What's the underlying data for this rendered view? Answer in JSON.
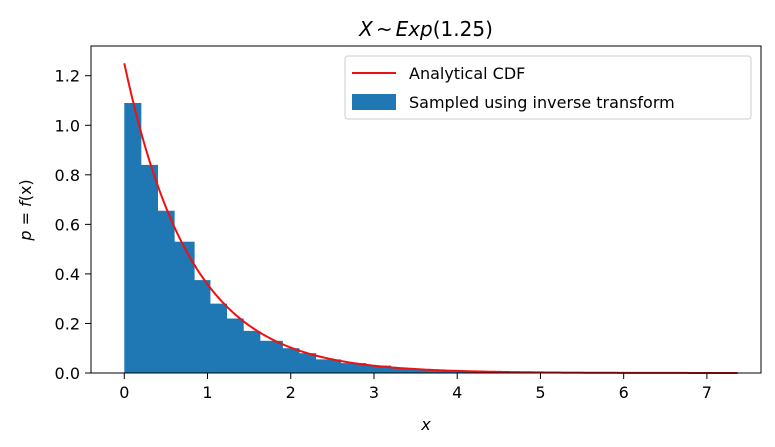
{
  "chart_data": {
    "type": "histogram+line",
    "title": "X ~ Exp(1.25)",
    "title_parts": {
      "var": "X",
      "op": "~",
      "dist": "Exp",
      "param": "(1.25)"
    },
    "xlabel": "x",
    "ylabel_parts": {
      "p": "p",
      "eq": " = ",
      "f": "f",
      "arg": "(x)"
    },
    "xlim": [
      -0.4,
      7.65
    ],
    "ylim": [
      0,
      1.32
    ],
    "xticks": [
      0,
      1,
      2,
      3,
      4,
      5,
      6,
      7
    ],
    "xtick_labels": [
      "0",
      "1",
      "2",
      "3",
      "4",
      "5",
      "6",
      "7"
    ],
    "yticks": [
      0.0,
      0.2,
      0.4,
      0.6,
      0.8,
      1.0,
      1.2
    ],
    "ytick_labels": [
      "0.0",
      "0.2",
      "0.4",
      "0.6",
      "0.8",
      "1.0",
      "1.2"
    ],
    "legend_position": "upper-right",
    "series": [
      {
        "name": "Analytical CDF",
        "kind": "line",
        "color": "#ee1111",
        "function": "1.25*exp(-1.25*x)",
        "rate": 1.25,
        "x_range": [
          0,
          7.37
        ]
      },
      {
        "name": "Sampled using inverse transform",
        "kind": "histogram",
        "color": "#1f77b4",
        "bin_edges": [
          0.0,
          0.2,
          0.4,
          0.6,
          0.84,
          1.03,
          1.23,
          1.43,
          1.63,
          1.9,
          2.1,
          2.3,
          2.6,
          2.9,
          3.2,
          3.5,
          3.8,
          4.1,
          4.5,
          5.0,
          5.5,
          6.0,
          6.5,
          7.0,
          7.37
        ],
        "values": [
          1.09,
          0.84,
          0.655,
          0.53,
          0.375,
          0.28,
          0.22,
          0.17,
          0.13,
          0.1,
          0.08,
          0.055,
          0.04,
          0.03,
          0.02,
          0.014,
          0.01,
          0.007,
          0.004,
          0.003,
          0.002,
          0.001,
          0.001,
          0.001
        ]
      }
    ]
  }
}
